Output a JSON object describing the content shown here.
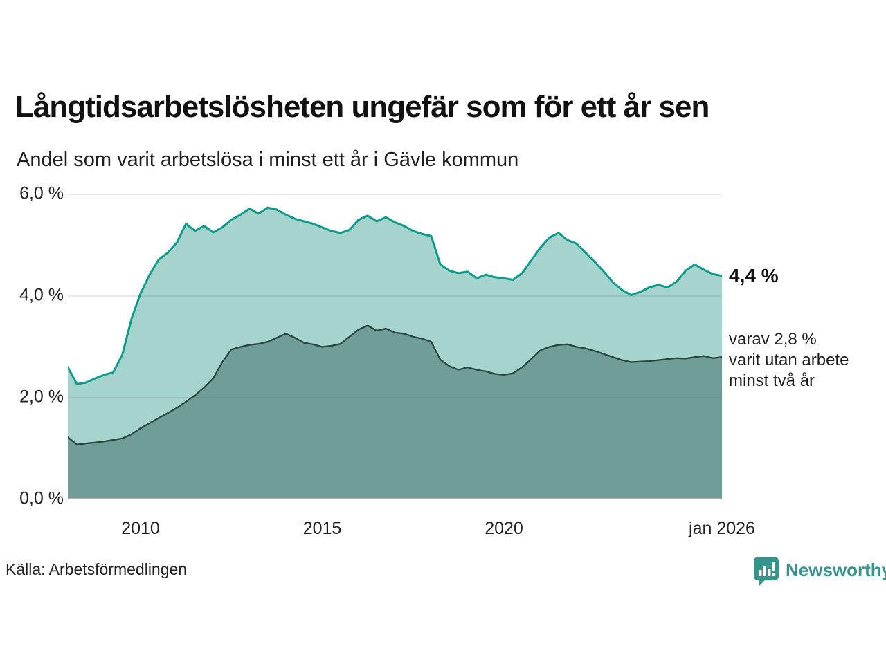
{
  "header": {
    "title": "Långtidsarbetslösheten ungefär som för ett år sen",
    "subtitle": "Andel som varit arbetslösa i minst ett år i Gävle kommun"
  },
  "chart_data": {
    "type": "area",
    "title": "Långtidsarbetslösheten ungefär som för ett år sen",
    "subtitle": "Andel som varit arbetslösa i minst ett år i Gävle kommun",
    "unit": "%",
    "xlim": [
      2008,
      2026
    ],
    "ylim": [
      0,
      6
    ],
    "grid": "horizontal",
    "legend_position": "none",
    "x": [
      2008.0,
      2008.25,
      2008.5,
      2008.75,
      2009.0,
      2009.25,
      2009.5,
      2009.75,
      2010.0,
      2010.25,
      2010.5,
      2010.75,
      2011.0,
      2011.25,
      2011.5,
      2011.75,
      2012.0,
      2012.25,
      2012.5,
      2012.75,
      2013.0,
      2013.25,
      2013.5,
      2013.75,
      2014.0,
      2014.25,
      2014.5,
      2014.75,
      2015.0,
      2015.25,
      2015.5,
      2015.75,
      2016.0,
      2016.25,
      2016.5,
      2016.75,
      2017.0,
      2017.25,
      2017.5,
      2017.75,
      2018.0,
      2018.25,
      2018.5,
      2018.75,
      2019.0,
      2019.25,
      2019.5,
      2019.75,
      2020.0,
      2020.25,
      2020.5,
      2020.75,
      2021.0,
      2021.25,
      2021.5,
      2021.75,
      2022.0,
      2022.25,
      2022.5,
      2022.75,
      2023.0,
      2023.25,
      2023.5,
      2023.75,
      2024.0,
      2024.25,
      2024.5,
      2024.75,
      2025.0,
      2025.25,
      2025.5,
      2025.75,
      2026.0
    ],
    "series": [
      {
        "name": "Andel som varit arbetslösa i minst ett år",
        "line_color": "#0e9a8b",
        "fill_color": "#a5d4cd",
        "line_width": 3,
        "values": [
          2.6,
          2.27,
          2.3,
          2.38,
          2.45,
          2.5,
          2.85,
          3.55,
          4.05,
          4.42,
          4.72,
          4.85,
          5.05,
          5.42,
          5.28,
          5.38,
          5.25,
          5.35,
          5.5,
          5.6,
          5.72,
          5.62,
          5.74,
          5.7,
          5.6,
          5.52,
          5.47,
          5.42,
          5.35,
          5.28,
          5.24,
          5.3,
          5.5,
          5.58,
          5.47,
          5.55,
          5.45,
          5.38,
          5.28,
          5.22,
          5.18,
          4.62,
          4.5,
          4.45,
          4.48,
          4.35,
          4.42,
          4.37,
          4.35,
          4.32,
          4.45,
          4.7,
          4.95,
          5.15,
          5.24,
          5.1,
          5.03,
          4.85,
          4.67,
          4.48,
          4.27,
          4.12,
          4.02,
          4.08,
          4.17,
          4.22,
          4.17,
          4.28,
          4.5,
          4.62,
          4.52,
          4.43,
          4.4
        ]
      },
      {
        "name": "varav varit utan arbete minst två år",
        "line_color": "#27433e",
        "fill_color": "#6f9d97",
        "line_width": 2.25,
        "values": [
          1.22,
          1.08,
          1.1,
          1.12,
          1.14,
          1.17,
          1.2,
          1.28,
          1.4,
          1.5,
          1.6,
          1.7,
          1.8,
          1.92,
          2.05,
          2.2,
          2.38,
          2.7,
          2.95,
          3.0,
          3.04,
          3.06,
          3.1,
          3.18,
          3.26,
          3.18,
          3.08,
          3.05,
          3.0,
          3.02,
          3.06,
          3.2,
          3.34,
          3.42,
          3.32,
          3.36,
          3.28,
          3.26,
          3.2,
          3.16,
          3.1,
          2.75,
          2.62,
          2.55,
          2.6,
          2.55,
          2.52,
          2.47,
          2.45,
          2.48,
          2.6,
          2.76,
          2.93,
          3.0,
          3.04,
          3.05,
          3.0,
          2.97,
          2.92,
          2.86,
          2.8,
          2.74,
          2.7,
          2.71,
          2.72,
          2.74,
          2.76,
          2.78,
          2.77,
          2.8,
          2.82,
          2.78,
          2.8
        ]
      }
    ],
    "yticks": [
      {
        "value": 6,
        "label": "6,0 %"
      },
      {
        "value": 4,
        "label": "4,0 %"
      },
      {
        "value": 2,
        "label": "2,0 %"
      },
      {
        "value": 0,
        "label": "0,0 %"
      }
    ],
    "xticks": [
      {
        "value": 2010,
        "label": "2010"
      },
      {
        "value": 2015,
        "label": "2015"
      },
      {
        "value": 2020,
        "label": "2020"
      },
      {
        "value": 2026,
        "label": "jan 2026"
      }
    ],
    "annotations": {
      "latest_value_label": "4,4 %",
      "secondary_lines": [
        "varav 2,8 %",
        "varit utan arbete",
        "minst två år"
      ]
    },
    "colors": {
      "grid": "#d9d9d9",
      "axis": "#adadad"
    }
  },
  "footer": {
    "source": "Källa: Arbetsförmedlingen",
    "brand": "Newsworthy",
    "brand_color": "#37948a",
    "logo_icon": "bar-chart-speech-bubble"
  }
}
